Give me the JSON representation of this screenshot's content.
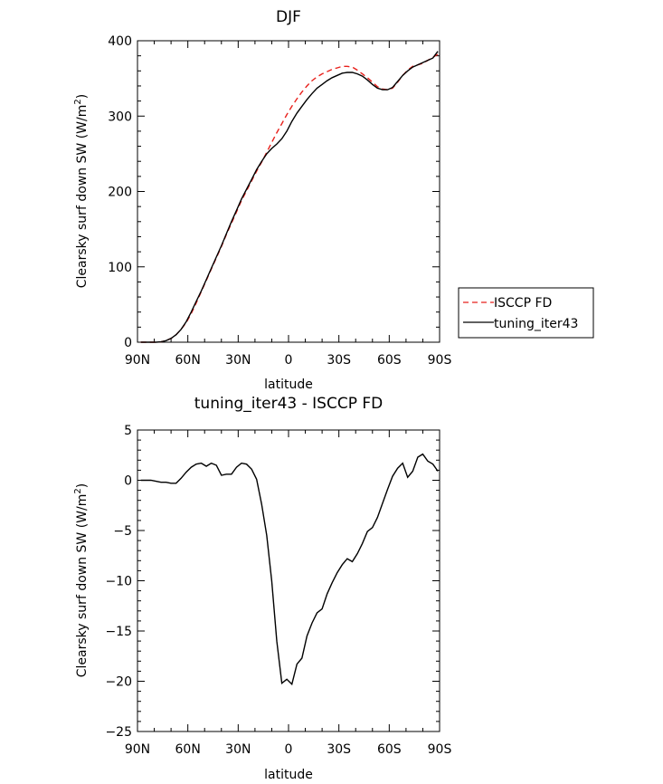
{
  "chart_data": [
    {
      "type": "line",
      "title": "DJF",
      "xlabel": "latitude",
      "ylabel": "Clearsky surf down SW (W/m²)",
      "ylabel_main": "Clearsky surf down SW (W/m",
      "ylabel_sup": "2",
      "ylabel_end": ")",
      "xlim": [
        90,
        -90
      ],
      "ylim": [
        0,
        400
      ],
      "xticks": [
        90,
        60,
        30,
        0,
        -30,
        -60,
        -90
      ],
      "xticklabels": [
        "90N",
        "60N",
        "30N",
        "0",
        "30S",
        "60S",
        "90S"
      ],
      "yticks": [
        0,
        100,
        200,
        300,
        400
      ],
      "yticklabels": [
        "0",
        "100",
        "200",
        "300",
        "400"
      ],
      "legend_position": "right",
      "series": [
        {
          "name": "ISCCP FD",
          "color": "#e8211c",
          "dash": "dashed",
          "x": [
            88,
            85,
            82,
            79,
            76,
            73,
            70,
            67,
            64,
            61,
            58,
            55,
            52,
            49,
            46,
            43,
            40,
            37,
            34,
            31,
            28,
            25,
            22,
            19,
            16,
            13,
            10,
            7,
            4,
            1,
            -2,
            -5,
            -8,
            -11,
            -14,
            -17,
            -20,
            -23,
            -26,
            -29,
            -32,
            -35,
            -38,
            -41,
            -44,
            -47,
            -50,
            -53,
            -56,
            -59,
            -62,
            -65,
            -68,
            -71,
            -74,
            -77,
            -80,
            -83,
            -86,
            -89
          ],
          "y": [
            0,
            0,
            0,
            0,
            0.5,
            2,
            5,
            10,
            17,
            26,
            38,
            52,
            67,
            82,
            97,
            112,
            127,
            143,
            158,
            173,
            188,
            201,
            214,
            227,
            239,
            252,
            265,
            278,
            290,
            302,
            313,
            323,
            332,
            340,
            347,
            352,
            356,
            359,
            362,
            364,
            366,
            366,
            365,
            361,
            356,
            351,
            345,
            339,
            336,
            335,
            337,
            345,
            354,
            361,
            366,
            368,
            370,
            374,
            378,
            382
          ]
        },
        {
          "name": "tuning_iter43",
          "color": "#000000",
          "dash": "solid",
          "x": [
            88,
            85,
            82,
            79,
            76,
            73,
            70,
            67,
            64,
            61,
            58,
            55,
            52,
            49,
            46,
            43,
            40,
            37,
            34,
            31,
            28,
            25,
            22,
            19,
            16,
            13,
            10,
            7,
            4,
            1,
            -2,
            -5,
            -8,
            -11,
            -14,
            -17,
            -20,
            -23,
            -26,
            -29,
            -32,
            -35,
            -38,
            -41,
            -44,
            -47,
            -50,
            -53,
            -56,
            -59,
            -62,
            -65,
            -68,
            -71,
            -74,
            -77,
            -80,
            -83,
            -86,
            -89
          ],
          "y": [
            0,
            0,
            0,
            0,
            0.5,
            2,
            5,
            10,
            17,
            27,
            40,
            54,
            68,
            83,
            98,
            113,
            128,
            144,
            160,
            175,
            190,
            203,
            216,
            229,
            240,
            250,
            257,
            263,
            270,
            280,
            293,
            304,
            313,
            322,
            330,
            337,
            342,
            347,
            351,
            354,
            357,
            358,
            358,
            356,
            353,
            348,
            342,
            337,
            335,
            335,
            338,
            346,
            354,
            360,
            365,
            368,
            371,
            374,
            377,
            386
          ]
        }
      ]
    },
    {
      "type": "line",
      "title": "tuning_iter43 - ISCCP FD",
      "xlabel": "latitude",
      "ylabel": "Clearsky surf down SW (W/m²)",
      "ylabel_main": "Clearsky surf down SW (W/m",
      "ylabel_sup": "2",
      "ylabel_end": ")",
      "xlim": [
        90,
        -90
      ],
      "ylim": [
        -25,
        5
      ],
      "xticks": [
        90,
        60,
        30,
        0,
        -30,
        -60,
        -90
      ],
      "xticklabels": [
        "90N",
        "60N",
        "30N",
        "0",
        "30S",
        "60S",
        "90S"
      ],
      "yticks": [
        -25,
        -20,
        -15,
        -10,
        -5,
        0,
        5
      ],
      "yticklabels": [
        "−25",
        "−20",
        "−15",
        "−10",
        "−5",
        "0",
        "5"
      ],
      "series": [
        {
          "name": "tuning_iter43 - ISCCP FD",
          "color": "#000000",
          "dash": "solid",
          "x": [
            88,
            85,
            82,
            79,
            76,
            73,
            70,
            67,
            64,
            61,
            58,
            55,
            52,
            49,
            46,
            43,
            40,
            37,
            34,
            31,
            28,
            25,
            22,
            19,
            16,
            13,
            10,
            7,
            4,
            1,
            -2,
            -5,
            -8,
            -11,
            -14,
            -17,
            -20,
            -23,
            -26,
            -29,
            -32,
            -35,
            -38,
            -41,
            -44,
            -47,
            -50,
            -53,
            -56,
            -59,
            -62,
            -65,
            -68,
            -71,
            -74,
            -77,
            -80,
            -83,
            -86,
            -89
          ],
          "y": [
            0,
            0,
            0,
            -0.1,
            -0.2,
            -0.2,
            -0.3,
            -0.3,
            0.2,
            0.8,
            1.3,
            1.6,
            1.7,
            1.4,
            1.7,
            1.5,
            0.5,
            0.6,
            0.6,
            1.3,
            1.7,
            1.6,
            1.1,
            0.1,
            -2.4,
            -5.5,
            -10,
            -16,
            -20.2,
            -19.8,
            -20.3,
            -18.3,
            -17.7,
            -15.5,
            -14.2,
            -13.2,
            -12.8,
            -11.3,
            -10.2,
            -9.2,
            -8.4,
            -7.8,
            -8.1,
            -7.3,
            -6.3,
            -5.1,
            -4.7,
            -3.7,
            -2.3,
            -0.9,
            0.4,
            1.2,
            1.7,
            0.3,
            0.9,
            2.3,
            2.6,
            1.9,
            1.6,
            0.9
          ]
        }
      ]
    }
  ]
}
